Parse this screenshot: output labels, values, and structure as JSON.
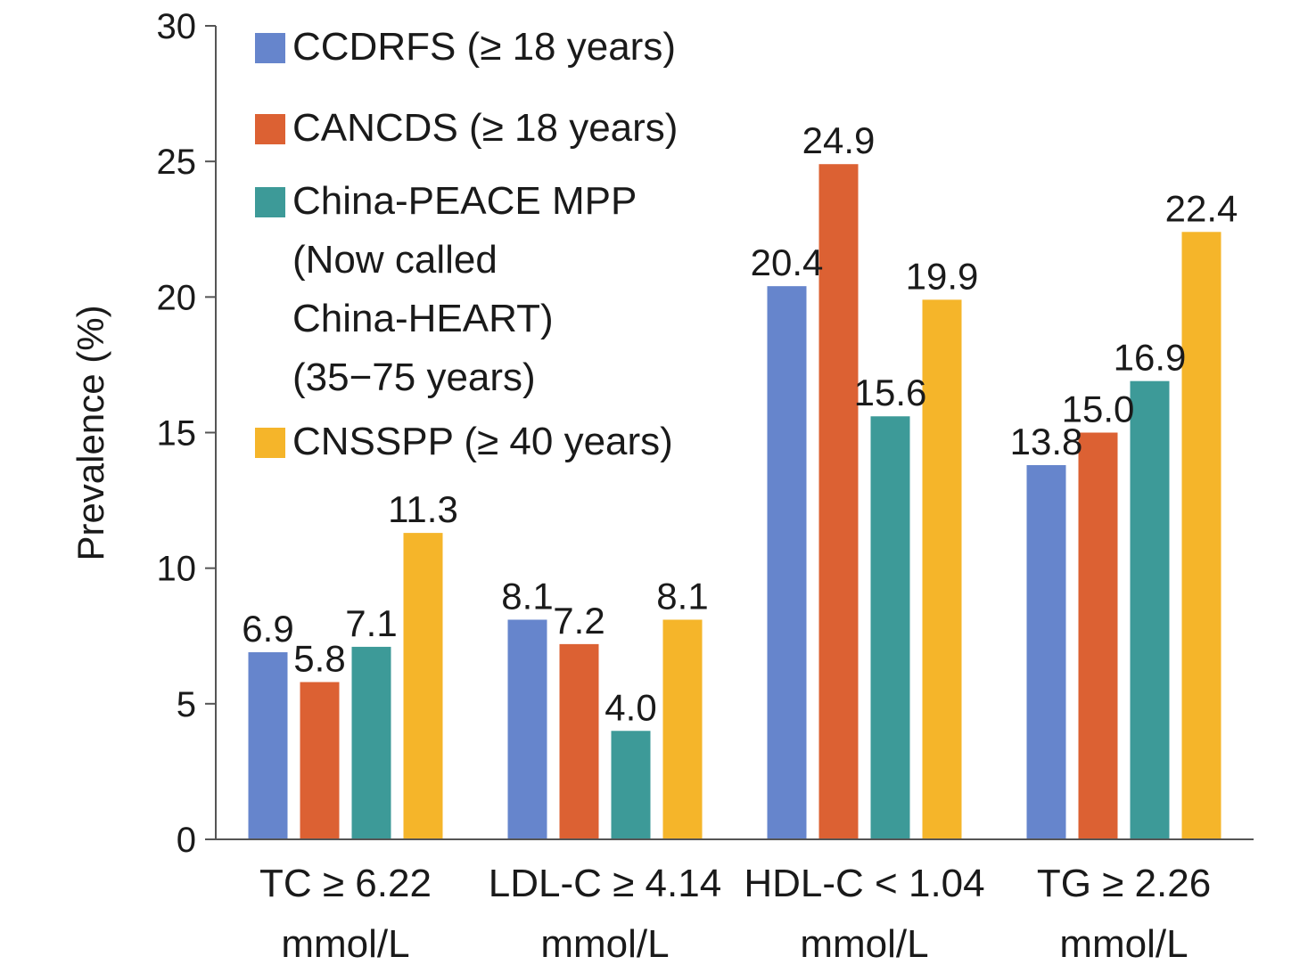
{
  "chart_data": {
    "type": "bar",
    "title": "",
    "ylabel": "Prevalence (%)",
    "xlabel": "",
    "ylim": [
      0,
      30
    ],
    "yticks": [
      0,
      5,
      10,
      15,
      20,
      25,
      30
    ],
    "grid": false,
    "legend_position": "top-left",
    "categories": [
      [
        "TC ≥ 6.22",
        "mmol/L"
      ],
      [
        "LDL-C ≥ 4.14",
        "mmol/L"
      ],
      [
        "HDL-C < 1.04",
        "mmol/L"
      ],
      [
        "TG ≥ 2.26",
        "mmol/L"
      ]
    ],
    "series": [
      {
        "name": "CCDRFS (≥ 18 years)",
        "legend_lines": [
          "CCDRFS (≥ 18 years)"
        ],
        "color": "#6685cc",
        "values": [
          6.9,
          8.1,
          20.4,
          13.8
        ],
        "labels": [
          "6.9",
          "8.1",
          "20.4",
          "13.8"
        ]
      },
      {
        "name": "CANCDS (≥ 18 years)",
        "legend_lines": [
          "CANCDS (≥ 18 years)"
        ],
        "color": "#dc6133",
        "values": [
          5.8,
          7.2,
          24.9,
          15.0
        ],
        "labels": [
          "5.8",
          "7.2",
          "24.9",
          "15.0"
        ]
      },
      {
        "name": "China-PEACE MPP (Now called China-HEART) (35−75 years)",
        "legend_lines": [
          "China-PEACE MPP",
          "(Now called",
          "China-HEART)",
          "(35−75 years)"
        ],
        "color": "#3d9a98",
        "values": [
          7.1,
          4.0,
          15.6,
          16.9
        ],
        "labels": [
          "7.1",
          "4.0",
          "15.6",
          "16.9"
        ]
      },
      {
        "name": "CNSSPP (≥ 40 years)",
        "legend_lines": [
          "CNSSPP (≥ 40 years)"
        ],
        "color": "#f5b52a",
        "values": [
          11.3,
          8.1,
          19.9,
          22.4
        ],
        "labels": [
          "11.3",
          "8.1",
          "19.9",
          "22.4"
        ]
      }
    ]
  }
}
